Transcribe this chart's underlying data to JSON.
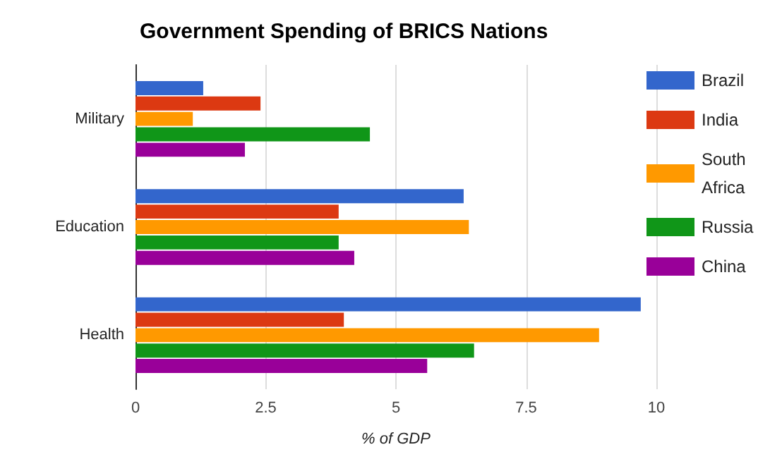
{
  "chart_data": {
    "type": "bar",
    "orientation": "horizontal",
    "title": "Government Spending of BRICS Nations",
    "xlabel": "% of GDP",
    "categories": [
      "Military",
      "Education",
      "Health"
    ],
    "series": [
      {
        "name": "Brazil",
        "color": "#3366cc",
        "values": [
          1.3,
          6.3,
          9.7
        ]
      },
      {
        "name": "India",
        "color": "#dc3912",
        "values": [
          2.4,
          3.9,
          4.0
        ]
      },
      {
        "name": "South Africa",
        "color": "#ff9900",
        "values": [
          1.1,
          6.4,
          8.9
        ]
      },
      {
        "name": "Russia",
        "color": "#109618",
        "values": [
          4.5,
          3.9,
          6.5
        ]
      },
      {
        "name": "China",
        "color": "#990099",
        "values": [
          2.1,
          4.2,
          5.6
        ]
      }
    ],
    "xlim": [
      0,
      10
    ],
    "xticks": [
      0,
      2.5,
      5,
      7.5,
      10
    ],
    "grid": "x",
    "legend": "right"
  }
}
